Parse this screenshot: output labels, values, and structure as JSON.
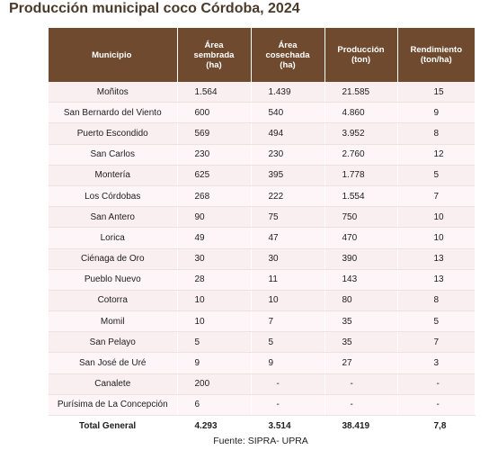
{
  "title": "Producción municipal coco Córdoba, 2024",
  "table": {
    "headers": [
      "Municipio",
      "Área\nsembrada\n(ha)",
      "Área\ncosechada\n(ha)",
      "Producción\n(ton)",
      "Rendimiento\n(ton/ha)"
    ],
    "rows": [
      [
        "Moñitos",
        "1.564",
        "1.439",
        "21.585",
        "15"
      ],
      [
        "San Bernardo del Viento",
        "600",
        "540",
        "4.860",
        "9"
      ],
      [
        "Puerto Escondido",
        "569",
        "494",
        "3.952",
        "8"
      ],
      [
        "San Carlos",
        "230",
        "230",
        "2.760",
        "12"
      ],
      [
        "Montería",
        "625",
        "395",
        "1.778",
        "5"
      ],
      [
        "Los Córdobas",
        "268",
        "222",
        "1.554",
        "7"
      ],
      [
        "San Antero",
        "90",
        "75",
        "750",
        "10"
      ],
      [
        "Lorica",
        "49",
        "47",
        "470",
        "10"
      ],
      [
        "Ciénaga de Oro",
        "30",
        "30",
        "390",
        "13"
      ],
      [
        "Pueblo Nuevo",
        "28",
        "11",
        "143",
        "13"
      ],
      [
        "Cotorra",
        "10",
        "10",
        "80",
        "8"
      ],
      [
        "Momil",
        "10",
        "7",
        "35",
        "5"
      ],
      [
        "San Pelayo",
        "5",
        "5",
        "35",
        "7"
      ],
      [
        "San José de Uré",
        "9",
        "9",
        "27",
        "3"
      ],
      [
        "Canalete",
        "200",
        "-",
        "-",
        "-"
      ],
      [
        "Purísima de La Concepción",
        "6",
        "-",
        "-",
        "-"
      ]
    ],
    "total": [
      "Total General",
      "4.293",
      "3.514",
      "38.419",
      "7,8"
    ]
  },
  "source": "Fuente: SIPRA- UPRA"
}
